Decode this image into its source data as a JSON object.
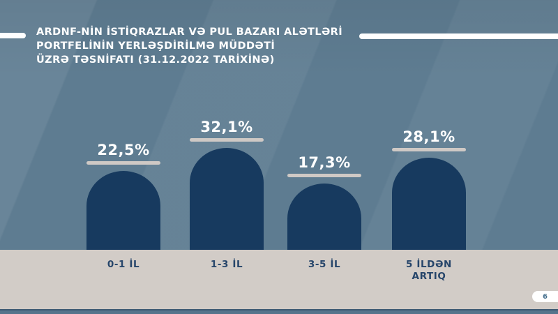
{
  "slide": {
    "title_lines": [
      "ARDNF-NİN İSTİQRAZLAR VƏ PUL BAZARI ALƏTLƏRİ",
      "PORTFELİNİN YERLƏŞDİRİLMƏ MÜDDƏTİ",
      "ÜZRƏ TƏSNİFATI (31.12.2022 TARİXİNƏ)"
    ],
    "page_number": "6"
  },
  "colors": {
    "background": "#5e7c91",
    "bar": "#173a5f",
    "band": "#d2ccc7",
    "label_text": "#26456a",
    "value_text": "#ffffff",
    "underline": "#cfc9c5",
    "footer_strip": "#56748c",
    "page_number_text": "#4a7390"
  },
  "chart_data": {
    "type": "bar",
    "title": "ARDNF-NİN İSTİQRAZLAR VƏ PUL BAZARI ALƏTLƏRİ PORTFELİNİN YERLƏŞDİRİLMƏ MÜDDƏTİ ÜZRƏ TƏSNİFATI (31.12.2022 TARİXİNƏ)",
    "categories": [
      "0-1 İL",
      "1-3 İL",
      "3-5 İL",
      "5 İLDƏN ARTIQ"
    ],
    "values": [
      22.5,
      32.1,
      17.3,
      28.1
    ],
    "value_labels": [
      "22,5%",
      "32,1%",
      "17,3%",
      "28,1%"
    ],
    "unit": "%",
    "xlabel": "",
    "ylabel": "",
    "legend": "none",
    "gridlines": false,
    "bar_shape": "rounded-dome-top"
  }
}
